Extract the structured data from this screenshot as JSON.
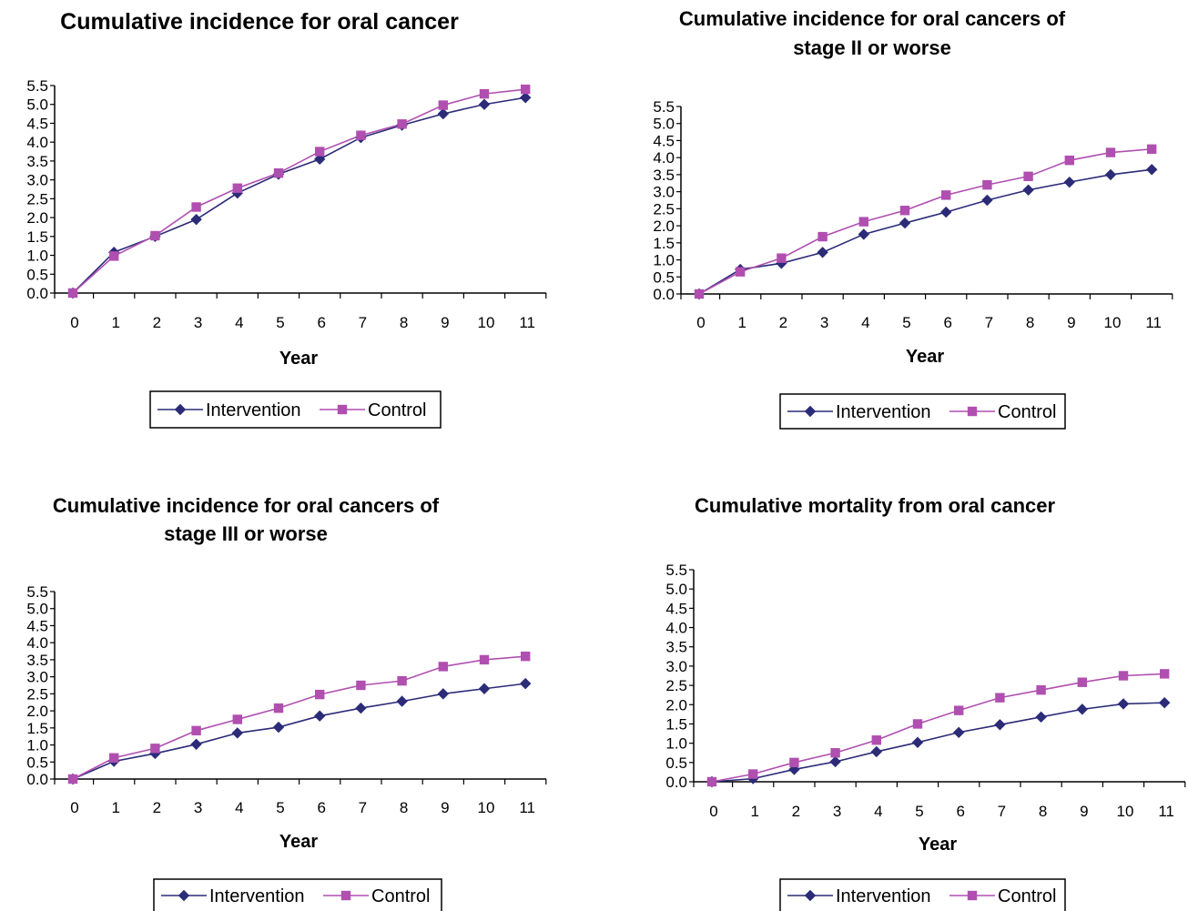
{
  "legend_labels": [
    "Intervention",
    "Control"
  ],
  "colors": {
    "intervention": "#2b2b78",
    "control": "#b04fb0"
  },
  "chart_data": [
    {
      "type": "line",
      "title": [
        "Cumulative incidence for oral cancer"
      ],
      "xlabel": "Year",
      "ylabel": "",
      "x": [
        0,
        1,
        2,
        3,
        4,
        5,
        6,
        7,
        8,
        9,
        10,
        11
      ],
      "ylim": [
        0,
        5.5
      ],
      "yticks": [
        "0.0",
        "0.5",
        "1.0",
        "1.5",
        "2.0",
        "2.5",
        "3.0",
        "3.5",
        "4.0",
        "4.5",
        "5.0",
        "5.5"
      ],
      "legend": "bottom",
      "series": [
        {
          "name": "Intervention",
          "marker": "diamond",
          "values": [
            0,
            1.08,
            1.5,
            1.95,
            2.65,
            3.15,
            3.55,
            4.12,
            4.45,
            4.75,
            5.0,
            5.18
          ]
        },
        {
          "name": "Control",
          "marker": "square",
          "values": [
            0,
            0.98,
            1.52,
            2.28,
            2.78,
            3.18,
            3.75,
            4.18,
            4.48,
            4.98,
            5.28,
            5.4
          ]
        }
      ]
    },
    {
      "type": "line",
      "title": [
        "Cumulative incidence for oral cancers of",
        "stage II or worse"
      ],
      "xlabel": "Year",
      "ylabel": "",
      "x": [
        0,
        1,
        2,
        3,
        4,
        5,
        6,
        7,
        8,
        9,
        10,
        11
      ],
      "ylim": [
        0,
        5.5
      ],
      "yticks": [
        "0.0",
        "0.5",
        "1.0",
        "1.5",
        "2.0",
        "2.5",
        "3.0",
        "3.5",
        "4.0",
        "4.5",
        "5.0",
        "5.5"
      ],
      "legend": "bottom",
      "series": [
        {
          "name": "Intervention",
          "marker": "diamond",
          "values": [
            0,
            0.72,
            0.9,
            1.22,
            1.75,
            2.08,
            2.4,
            2.75,
            3.05,
            3.28,
            3.5,
            3.65
          ]
        },
        {
          "name": "Control",
          "marker": "square",
          "values": [
            0,
            0.65,
            1.05,
            1.68,
            2.12,
            2.45,
            2.9,
            3.2,
            3.45,
            3.92,
            4.15,
            4.25
          ]
        }
      ]
    },
    {
      "type": "line",
      "title": [
        "Cumulative incidence for oral cancers of",
        "stage III or worse"
      ],
      "xlabel": "Year",
      "ylabel": "",
      "x": [
        0,
        1,
        2,
        3,
        4,
        5,
        6,
        7,
        8,
        9,
        10,
        11
      ],
      "ylim": [
        0,
        5.5
      ],
      "yticks": [
        "0.0",
        "0.5",
        "1.0",
        "1.5",
        "2.0",
        "2.5",
        "3.0",
        "3.5",
        "4.0",
        "4.5",
        "5.0",
        "5.5"
      ],
      "legend": "bottom",
      "series": [
        {
          "name": "Intervention",
          "marker": "diamond",
          "values": [
            0,
            0.52,
            0.75,
            1.02,
            1.35,
            1.52,
            1.85,
            2.08,
            2.28,
            2.5,
            2.65,
            2.8
          ]
        },
        {
          "name": "Control",
          "marker": "square",
          "values": [
            0,
            0.62,
            0.9,
            1.42,
            1.75,
            2.08,
            2.48,
            2.75,
            2.88,
            3.3,
            3.5,
            3.6
          ]
        }
      ]
    },
    {
      "type": "line",
      "title": [
        "Cumulative mortality from oral cancer"
      ],
      "xlabel": "Year",
      "ylabel": "",
      "x": [
        0,
        1,
        2,
        3,
        4,
        5,
        6,
        7,
        8,
        9,
        10,
        11
      ],
      "ylim": [
        0,
        5.5
      ],
      "yticks": [
        "0.0",
        "0.5",
        "1.0",
        "1.5",
        "2.0",
        "2.5",
        "3.0",
        "3.5",
        "4.0",
        "4.5",
        "5.0",
        "5.5"
      ],
      "legend": "bottom",
      "series": [
        {
          "name": "Intervention",
          "marker": "diamond",
          "values": [
            0,
            0.08,
            0.32,
            0.52,
            0.78,
            1.02,
            1.28,
            1.48,
            1.68,
            1.88,
            2.02,
            2.05
          ]
        },
        {
          "name": "Control",
          "marker": "square",
          "values": [
            0,
            0.2,
            0.5,
            0.75,
            1.08,
            1.5,
            1.85,
            2.18,
            2.38,
            2.58,
            2.75,
            2.8
          ]
        }
      ]
    }
  ]
}
